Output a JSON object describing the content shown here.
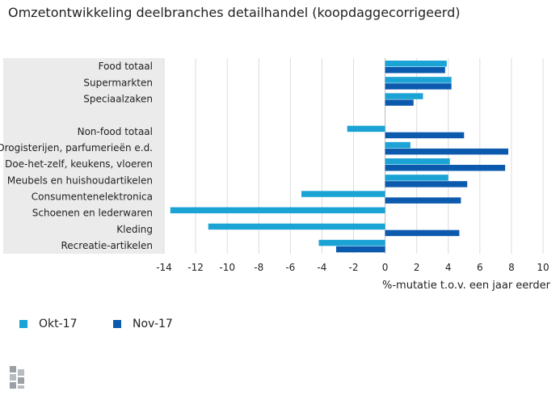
{
  "title": "Omzetontwikkeling deelbranches detailhandel (koopdaggecorrigeerd)",
  "chart_data": {
    "type": "bar",
    "orientation": "horizontal",
    "title": "Omzetontwikkeling deelbranches detailhandel (koopdaggecorrigeerd)",
    "xlabel": "%-mutatie t.o.v. een jaar eerder",
    "ylabel": "",
    "xlim": [
      -14,
      10
    ],
    "xticks": [
      "-14",
      "-12",
      "-10",
      "-8",
      "-6",
      "-4",
      "-2",
      "0",
      "2",
      "4",
      "6",
      "8",
      "10"
    ],
    "categories": [
      "Food totaal",
      "Supermarkten",
      "Speciaalzaken",
      "",
      "Non-food totaal",
      "Drogisterijen, parfumerieën e.d.",
      "Doe-het-zelf, keukens, vloeren",
      "Meubels en huishoudartikelen",
      "Consumentenelektronica",
      "Schoenen en lederwaren",
      "Kleding",
      "Recreatie-artikelen"
    ],
    "series": [
      {
        "name": "Okt-17",
        "color": "#1aa3d4",
        "values": [
          3.9,
          4.2,
          2.4,
          null,
          -2.4,
          1.6,
          4.1,
          4.0,
          -5.3,
          -13.6,
          -11.2,
          -4.2
        ]
      },
      {
        "name": "Nov-17",
        "color": "#0c5aae",
        "values": [
          3.8,
          4.2,
          1.8,
          null,
          5.0,
          7.8,
          7.6,
          5.2,
          4.8,
          null,
          4.7,
          -3.1
        ]
      }
    ],
    "legend_position": "bottom-left"
  },
  "legend": [
    {
      "label": "Okt-17",
      "color": "#1aa3d4"
    },
    {
      "label": "Nov-17",
      "color": "#0c5aae"
    }
  ],
  "logo_icon": "cbs-logo-icon"
}
